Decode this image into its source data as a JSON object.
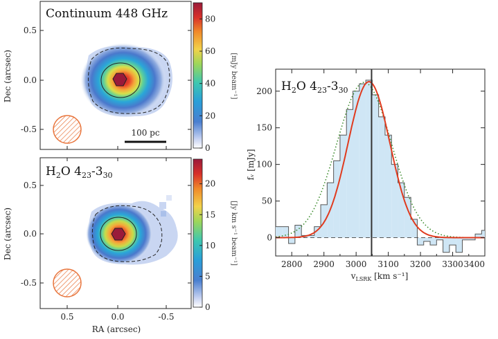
{
  "figure": {
    "top_map": {
      "title": "Continuum 448 GHz",
      "colorbar_label": "[mJy beam⁻¹]",
      "colorbar_ticks": [
        0,
        20,
        40,
        60,
        80
      ],
      "colorbar_range": [
        0,
        90
      ],
      "scalebar_label": "100 pc",
      "peak": 90
    },
    "bottom_map": {
      "title_main": "H",
      "title_sub1": "2",
      "title_mid": "O 4",
      "title_sub2": "23",
      "title_dash": "-3",
      "title_sub3": "30",
      "colorbar_label": "[Jy km s⁻¹ beam⁻¹]",
      "colorbar_ticks": [
        0,
        5,
        10,
        15,
        20
      ],
      "colorbar_range": [
        0,
        24
      ],
      "peak": 24
    },
    "maps_axes": {
      "ylabel": "Dec (arcsec)",
      "xlabel": "RA (arcsec)",
      "yticks": [
        "0.5",
        "0.0",
        "-0.5"
      ],
      "xticks": [
        "0.5",
        "0.0",
        "-0.5"
      ]
    },
    "colors": {
      "beam": "#e8743b",
      "fit_line": "#e03a1e",
      "dotted_line": "#3a8a2a",
      "histogram_fill": "#cfe6f5",
      "histogram_edge": "#555555"
    }
  },
  "chart_data": {
    "type": "bar",
    "title_main": "H",
    "title_sub1": "2",
    "title_mid": "O 4",
    "title_sub2": "23",
    "title_dash": "-3",
    "title_sub3": "30",
    "xlabel_main": "v",
    "xlabel_sub": "LSRK",
    "xlabel_rest": " [km s⁻¹]",
    "ylabel": "fᵥ [mJy]",
    "xlim": [
      2750,
      3400
    ],
    "ylim": [
      -25,
      230
    ],
    "xticks": [
      2800,
      2900,
      3000,
      3100,
      3200,
      3300,
      3400
    ],
    "yticks": [
      0,
      50,
      100,
      150,
      200
    ],
    "vertical_line_x": 3048,
    "bin_width": 20,
    "x": [
      2750,
      2770,
      2790,
      2810,
      2830,
      2850,
      2870,
      2890,
      2910,
      2930,
      2950,
      2970,
      2990,
      3010,
      3030,
      3050,
      3070,
      3090,
      3110,
      3130,
      3150,
      3170,
      3190,
      3210,
      3230,
      3250,
      3270,
      3290,
      3310,
      3330,
      3350,
      3370,
      3390
    ],
    "values": [
      15,
      15,
      -8,
      17,
      3,
      3,
      15,
      45,
      75,
      105,
      140,
      175,
      200,
      210,
      215,
      195,
      165,
      140,
      100,
      75,
      55,
      25,
      -10,
      -5,
      -10,
      -3,
      -20,
      -10,
      -20,
      -3,
      -3,
      5,
      10
    ],
    "gaussian_fit": {
      "amplitude": 213,
      "center": 3040,
      "sigma": 65
    },
    "dotted_profile": {
      "amplitude": 212,
      "center": 3025,
      "sigma": 85
    }
  }
}
